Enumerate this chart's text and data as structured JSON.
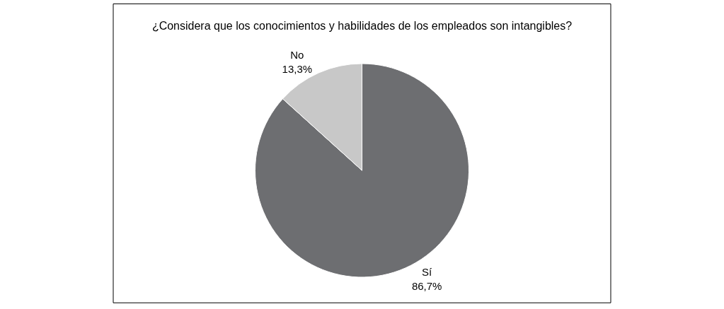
{
  "chart_data": {
    "type": "pie",
    "title": "¿Considera que los conocimientos y habilidades de los empleados son intangibles?",
    "categories": [
      "Sí",
      "No"
    ],
    "values": [
      86.7,
      13.3
    ],
    "value_labels": [
      "86,7%",
      "13,3%"
    ],
    "colors": [
      "#6d6e71",
      "#c8c8c8"
    ],
    "legend": false
  }
}
